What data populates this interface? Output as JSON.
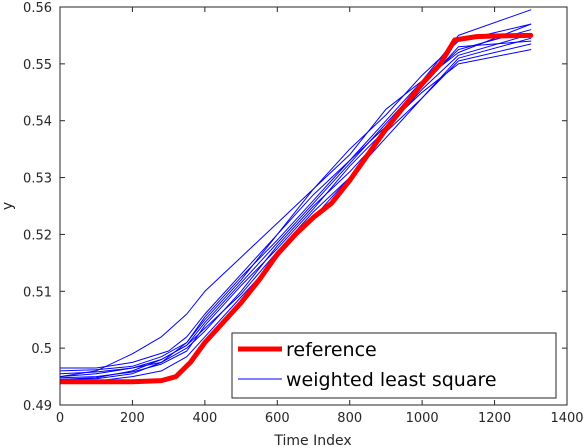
{
  "chart_data": {
    "type": "line",
    "xlabel": "Time Index",
    "ylabel": "y",
    "xlim": [
      0,
      1400
    ],
    "ylim": [
      0.49,
      0.56
    ],
    "x_ticks": [
      "0",
      "200",
      "400",
      "600",
      "800",
      "1000",
      "1200",
      "1400"
    ],
    "y_ticks": [
      "0.49",
      "0.5",
      "0.51",
      "0.52",
      "0.53",
      "0.54",
      "0.55",
      "0.56"
    ],
    "grid": false,
    "legend_position": "bottom-right",
    "legend": [
      "reference",
      "weighted least square"
    ],
    "colors": {
      "reference": "#ff0000",
      "weighted_least_square": "#0000ff"
    },
    "series": [
      {
        "name": "reference",
        "x": [
          0,
          100,
          200,
          280,
          320,
          360,
          400,
          450,
          500,
          550,
          600,
          650,
          700,
          750,
          800,
          850,
          900,
          950,
          1000,
          1050,
          1090,
          1150,
          1200,
          1300
        ],
        "y": [
          0.4941,
          0.4941,
          0.4941,
          0.4943,
          0.495,
          0.4975,
          0.501,
          0.5045,
          0.508,
          0.512,
          0.5165,
          0.52,
          0.523,
          0.5255,
          0.5295,
          0.534,
          0.5385,
          0.5425,
          0.5465,
          0.55,
          0.5542,
          0.5548,
          0.5549,
          0.555
        ]
      },
      {
        "x": [
          0,
          100,
          200,
          280,
          350,
          400,
          500,
          600,
          700,
          800,
          900,
          1000,
          1100,
          1300
        ],
        "y": [
          0.495,
          0.4955,
          0.4965,
          0.498,
          0.5005,
          0.5035,
          0.5095,
          0.517,
          0.524,
          0.53,
          0.539,
          0.546,
          0.553,
          0.554
        ]
      },
      {
        "x": [
          0,
          100,
          200,
          300,
          350,
          400,
          500,
          600,
          700,
          800,
          900,
          1000,
          1100,
          1300
        ],
        "y": [
          0.4965,
          0.4965,
          0.4975,
          0.4995,
          0.502,
          0.506,
          0.513,
          0.52,
          0.527,
          0.533,
          0.54,
          0.547,
          0.555,
          0.5595
        ]
      },
      {
        "x": [
          0,
          100,
          200,
          280,
          350,
          400,
          500,
          600,
          700,
          800,
          900,
          1000,
          1100,
          1300
        ],
        "y": [
          0.4945,
          0.4946,
          0.4955,
          0.4975,
          0.501,
          0.5055,
          0.5125,
          0.519,
          0.526,
          0.533,
          0.539,
          0.545,
          0.55,
          0.5525
        ]
      },
      {
        "x": [
          0,
          100,
          200,
          280,
          350,
          400,
          500,
          600,
          700,
          800,
          900,
          1000,
          1100,
          1300
        ],
        "y": [
          0.495,
          0.496,
          0.499,
          0.502,
          0.506,
          0.51,
          0.516,
          0.522,
          0.528,
          0.535,
          0.541,
          0.548,
          0.554,
          0.557
        ]
      },
      {
        "x": [
          0,
          100,
          200,
          280,
          350,
          400,
          500,
          600,
          700,
          800,
          900,
          1000,
          1100,
          1300
        ],
        "y": [
          0.4955,
          0.4958,
          0.4965,
          0.4975,
          0.5,
          0.503,
          0.51,
          0.518,
          0.525,
          0.531,
          0.538,
          0.544,
          0.551,
          0.5545
        ]
      },
      {
        "x": [
          0,
          100,
          200,
          280,
          350,
          400,
          500,
          600,
          700,
          800,
          900,
          1000,
          1100,
          1300
        ],
        "y": [
          0.494,
          0.4942,
          0.495,
          0.496,
          0.4985,
          0.502,
          0.509,
          0.516,
          0.523,
          0.53,
          0.537,
          0.544,
          0.5505,
          0.5535
        ]
      },
      {
        "x": [
          0,
          100,
          200,
          280,
          350,
          400,
          500,
          600,
          700,
          800,
          900,
          1000,
          1100,
          1300
        ],
        "y": [
          0.496,
          0.4962,
          0.4968,
          0.4985,
          0.501,
          0.505,
          0.512,
          0.52,
          0.528,
          0.534,
          0.542,
          0.547,
          0.552,
          0.557
        ]
      },
      {
        "x": [
          0,
          100,
          200,
          280,
          350,
          400,
          500,
          600,
          700,
          800,
          900,
          1000,
          1100,
          1300
        ],
        "y": [
          0.4948,
          0.495,
          0.4958,
          0.4972,
          0.4995,
          0.504,
          0.511,
          0.5175,
          0.5245,
          0.532,
          0.5385,
          0.5455,
          0.5515,
          0.5552
        ]
      },
      {
        "x": [
          0,
          100,
          200,
          280,
          350,
          400,
          500,
          600,
          700,
          800,
          900,
          1000,
          1100,
          1300
        ],
        "y": [
          0.4945,
          0.4948,
          0.496,
          0.498,
          0.5005,
          0.5045,
          0.5115,
          0.5185,
          0.5255,
          0.5325,
          0.5395,
          0.5465,
          0.5525,
          0.556
        ]
      }
    ]
  }
}
